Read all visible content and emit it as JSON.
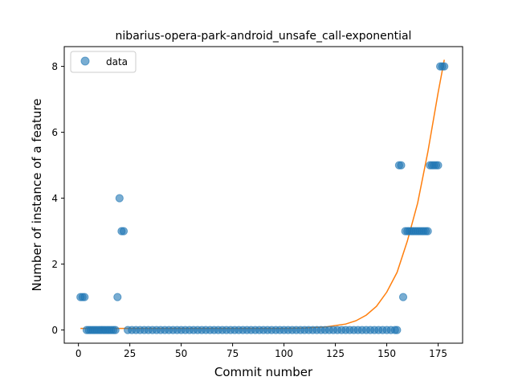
{
  "chart_data": {
    "type": "scatter",
    "title": "nibarius-opera-park-android_unsafe_call-exponential",
    "xlabel": "Commit number",
    "ylabel": "Number of instance of a feature",
    "xlim": [
      -6.9,
      186.9
    ],
    "ylim": [
      -0.4,
      8.6
    ],
    "xticks": [
      0,
      25,
      50,
      75,
      100,
      125,
      150,
      175
    ],
    "yticks": [
      0,
      2,
      4,
      6,
      8
    ],
    "grid": false,
    "legend": {
      "placement": "upper-left",
      "entries": [
        "data"
      ]
    },
    "colors": {
      "data": "#1f77b4",
      "fit": "#ff7f0e"
    },
    "scatter_points": [
      {
        "x": 1,
        "y": 1
      },
      {
        "x": 2,
        "y": 1
      },
      {
        "x": 3,
        "y": 1
      },
      {
        "x": 4,
        "y": 0
      },
      {
        "x": 5,
        "y": 0
      },
      {
        "x": 6,
        "y": 0
      },
      {
        "x": 7,
        "y": 0
      },
      {
        "x": 8,
        "y": 0
      },
      {
        "x": 9,
        "y": 0
      },
      {
        "x": 10,
        "y": 0
      },
      {
        "x": 11,
        "y": 0
      },
      {
        "x": 12,
        "y": 0
      },
      {
        "x": 13,
        "y": 0
      },
      {
        "x": 14,
        "y": 0
      },
      {
        "x": 15,
        "y": 0
      },
      {
        "x": 16,
        "y": 0
      },
      {
        "x": 17,
        "y": 0
      },
      {
        "x": 18,
        "y": 0
      },
      {
        "x": 19,
        "y": 1
      },
      {
        "x": 20,
        "y": 4
      },
      {
        "x": 21,
        "y": 3
      },
      {
        "x": 22,
        "y": 3
      },
      {
        "x": 24,
        "y": 0
      },
      {
        "x": 26,
        "y": 0
      },
      {
        "x": 28,
        "y": 0
      },
      {
        "x": 30,
        "y": 0
      },
      {
        "x": 32,
        "y": 0
      },
      {
        "x": 34,
        "y": 0
      },
      {
        "x": 36,
        "y": 0
      },
      {
        "x": 38,
        "y": 0
      },
      {
        "x": 40,
        "y": 0
      },
      {
        "x": 42,
        "y": 0
      },
      {
        "x": 44,
        "y": 0
      },
      {
        "x": 46,
        "y": 0
      },
      {
        "x": 48,
        "y": 0
      },
      {
        "x": 50,
        "y": 0
      },
      {
        "x": 52,
        "y": 0
      },
      {
        "x": 54,
        "y": 0
      },
      {
        "x": 56,
        "y": 0
      },
      {
        "x": 58,
        "y": 0
      },
      {
        "x": 60,
        "y": 0
      },
      {
        "x": 62,
        "y": 0
      },
      {
        "x": 64,
        "y": 0
      },
      {
        "x": 66,
        "y": 0
      },
      {
        "x": 68,
        "y": 0
      },
      {
        "x": 70,
        "y": 0
      },
      {
        "x": 72,
        "y": 0
      },
      {
        "x": 74,
        "y": 0
      },
      {
        "x": 76,
        "y": 0
      },
      {
        "x": 78,
        "y": 0
      },
      {
        "x": 80,
        "y": 0
      },
      {
        "x": 82,
        "y": 0
      },
      {
        "x": 84,
        "y": 0
      },
      {
        "x": 86,
        "y": 0
      },
      {
        "x": 88,
        "y": 0
      },
      {
        "x": 90,
        "y": 0
      },
      {
        "x": 92,
        "y": 0
      },
      {
        "x": 94,
        "y": 0
      },
      {
        "x": 96,
        "y": 0
      },
      {
        "x": 98,
        "y": 0
      },
      {
        "x": 100,
        "y": 0
      },
      {
        "x": 102,
        "y": 0
      },
      {
        "x": 104,
        "y": 0
      },
      {
        "x": 106,
        "y": 0
      },
      {
        "x": 108,
        "y": 0
      },
      {
        "x": 110,
        "y": 0
      },
      {
        "x": 112,
        "y": 0
      },
      {
        "x": 114,
        "y": 0
      },
      {
        "x": 116,
        "y": 0
      },
      {
        "x": 118,
        "y": 0
      },
      {
        "x": 120,
        "y": 0
      },
      {
        "x": 122,
        "y": 0
      },
      {
        "x": 124,
        "y": 0
      },
      {
        "x": 126,
        "y": 0
      },
      {
        "x": 128,
        "y": 0
      },
      {
        "x": 130,
        "y": 0
      },
      {
        "x": 132,
        "y": 0
      },
      {
        "x": 134,
        "y": 0
      },
      {
        "x": 136,
        "y": 0
      },
      {
        "x": 138,
        "y": 0
      },
      {
        "x": 140,
        "y": 0
      },
      {
        "x": 142,
        "y": 0
      },
      {
        "x": 144,
        "y": 0
      },
      {
        "x": 146,
        "y": 0
      },
      {
        "x": 148,
        "y": 0
      },
      {
        "x": 150,
        "y": 0
      },
      {
        "x": 152,
        "y": 0
      },
      {
        "x": 154,
        "y": 0
      },
      {
        "x": 155,
        "y": 0
      },
      {
        "x": 156,
        "y": 5
      },
      {
        "x": 157,
        "y": 5
      },
      {
        "x": 158,
        "y": 1
      },
      {
        "x": 159,
        "y": 3
      },
      {
        "x": 160,
        "y": 3
      },
      {
        "x": 161,
        "y": 3
      },
      {
        "x": 162,
        "y": 3
      },
      {
        "x": 163,
        "y": 3
      },
      {
        "x": 164,
        "y": 3
      },
      {
        "x": 165,
        "y": 3
      },
      {
        "x": 166,
        "y": 3
      },
      {
        "x": 167,
        "y": 3
      },
      {
        "x": 168,
        "y": 3
      },
      {
        "x": 169,
        "y": 3
      },
      {
        "x": 170,
        "y": 3
      },
      {
        "x": 171,
        "y": 5
      },
      {
        "x": 172,
        "y": 5
      },
      {
        "x": 173,
        "y": 5
      },
      {
        "x": 174,
        "y": 5
      },
      {
        "x": 175,
        "y": 5
      },
      {
        "x": 176,
        "y": 8
      },
      {
        "x": 177,
        "y": 8
      },
      {
        "x": 178,
        "y": 8
      }
    ],
    "fit_curve": {
      "x": [
        1,
        20,
        40,
        60,
        80,
        100,
        110,
        120,
        130,
        135,
        140,
        145,
        150,
        155,
        160,
        165,
        170,
        175,
        178
      ],
      "y": [
        0.05,
        0.05,
        0.05,
        0.05,
        0.05,
        0.05,
        0.06,
        0.09,
        0.18,
        0.28,
        0.45,
        0.72,
        1.15,
        1.75,
        2.7,
        3.85,
        5.4,
        7.2,
        8.2
      ]
    }
  }
}
